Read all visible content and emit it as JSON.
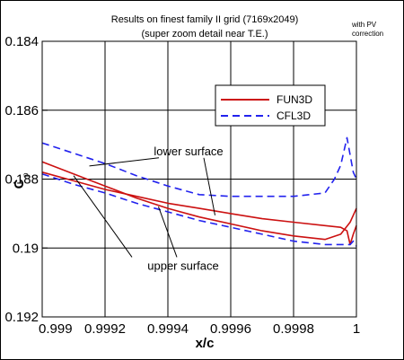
{
  "chart_data": {
    "type": "line",
    "title": "Results on finest family II grid (7169x2049)",
    "subtitle": "(super zoom detail near T.E.)",
    "note": [
      "with PV",
      "correction"
    ],
    "xlabel": "x/c",
    "ylabel_main": "C",
    "ylabel_sub": "p",
    "xlim": [
      0.999,
      1.0
    ],
    "ylim": [
      0.192,
      0.184
    ],
    "y_inverted": true,
    "grid": true,
    "xticks": [
      0.999,
      0.9992,
      0.9994,
      0.9996,
      0.9998,
      1.0
    ],
    "xtick_labels": [
      "0.999",
      "0.9992",
      "0.9994",
      "0.9996",
      "0.9998",
      "1"
    ],
    "yticks": [
      0.184,
      0.186,
      0.188,
      0.19,
      0.192
    ],
    "ytick_labels": [
      "0.184",
      "0.186",
      "0.188",
      "0.19",
      "0.192"
    ],
    "legend": {
      "position": "upper-right",
      "entries": [
        "FUN3D",
        "CFL3D"
      ]
    },
    "annotations": [
      {
        "text": "lower surface",
        "x": 0.9995,
        "y": 0.1872
      },
      {
        "text": "upper surface",
        "x": 0.9995,
        "y": 0.1905
      }
    ],
    "series": [
      {
        "name": "FUN3D",
        "part": "lower surface",
        "color": "#cc1111",
        "dash": "solid",
        "x": [
          0.999,
          0.9991,
          0.9992,
          0.9993,
          0.9994,
          0.9995,
          0.9996,
          0.9997,
          0.9998,
          0.9999,
          0.99995,
          0.99998,
          1.0
        ],
        "y": [
          0.1875,
          0.18785,
          0.1882,
          0.18855,
          0.18885,
          0.1891,
          0.1893,
          0.1895,
          0.18965,
          0.18975,
          0.1896,
          0.18925,
          0.18885
        ]
      },
      {
        "name": "FUN3D",
        "part": "upper surface",
        "color": "#cc1111",
        "dash": "solid",
        "x": [
          0.999,
          0.9991,
          0.9992,
          0.9993,
          0.9994,
          0.9995,
          0.9996,
          0.9997,
          0.9998,
          0.9999,
          0.99995,
          0.99997,
          0.99998,
          0.99999,
          1.0
        ],
        "y": [
          0.1878,
          0.18805,
          0.1883,
          0.1885,
          0.1887,
          0.18885,
          0.189,
          0.18915,
          0.18925,
          0.18935,
          0.1894,
          0.1895,
          0.1899,
          0.1896,
          0.18935
        ]
      },
      {
        "name": "CFL3D",
        "part": "lower surface",
        "color": "#2222ee",
        "dash": "dashed",
        "x": [
          0.999,
          0.9991,
          0.9992,
          0.9993,
          0.9994,
          0.9995,
          0.9996,
          0.9997,
          0.9998,
          0.9999,
          0.99993,
          0.99995,
          0.99997,
          0.99999,
          1.0
        ],
        "y": [
          0.18695,
          0.18725,
          0.18755,
          0.1879,
          0.1882,
          0.18845,
          0.1885,
          0.1885,
          0.1885,
          0.1884,
          0.188,
          0.1876,
          0.1868,
          0.1878,
          0.188
        ]
      },
      {
        "name": "CFL3D",
        "part": "upper surface",
        "color": "#2222ee",
        "dash": "dashed",
        "x": [
          0.999,
          0.9991,
          0.9992,
          0.9993,
          0.9994,
          0.9995,
          0.9996,
          0.9997,
          0.9998,
          0.9999,
          0.99995,
          0.99998,
          0.99999,
          1.0
        ],
        "y": [
          0.18785,
          0.18815,
          0.1884,
          0.1887,
          0.18895,
          0.1892,
          0.1894,
          0.1896,
          0.1898,
          0.1899,
          0.1899,
          0.1899,
          0.1898,
          0.18995
        ]
      }
    ]
  }
}
